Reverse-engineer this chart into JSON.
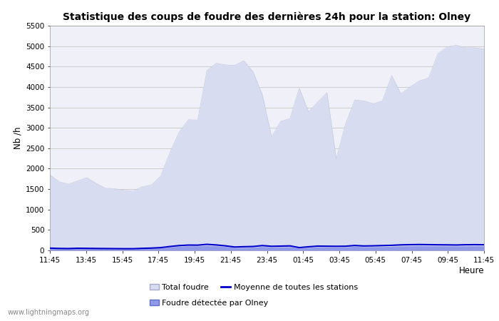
{
  "title": "Statistique des coups de foudre des dernières 24h pour la station: Olney",
  "xlabel": "Heure",
  "ylabel": "Nb /h",
  "ylim": [
    0,
    5500
  ],
  "yticks": [
    0,
    500,
    1000,
    1500,
    2000,
    2500,
    3000,
    3500,
    4000,
    4500,
    5000,
    5500
  ],
  "x_labels": [
    "11:45",
    "13:45",
    "15:45",
    "17:45",
    "19:45",
    "21:45",
    "23:45",
    "01:45",
    "03:45",
    "05:45",
    "07:45",
    "09:45",
    "11:45"
  ],
  "watermark": "www.lightningmaps.org",
  "bg_color": "#ffffff",
  "plot_bg_color": "#f0f0f8",
  "grid_color": "#cccccc",
  "total_foudre_color": "#d8dcf0",
  "total_foudre_edge": "#c8cce0",
  "olney_color": "#9098e8",
  "olney_edge": "#7080d8",
  "moyenne_color": "#0000cc",
  "total_foudre_values": [
    1850,
    1680,
    1620,
    1700,
    1780,
    1640,
    1520,
    1510,
    1470,
    1450,
    1560,
    1600,
    1820,
    2400,
    2900,
    3200,
    3190,
    4400,
    4580,
    4540,
    4530,
    4640,
    4370,
    3810,
    2780,
    3160,
    3230,
    3970,
    3390,
    3630,
    3860,
    2240,
    3090,
    3680,
    3660,
    3590,
    3660,
    4280,
    3830,
    4000,
    4150,
    4220,
    4810,
    4980,
    5020,
    4960,
    4960,
    4930
  ],
  "olney_values": [
    55,
    45,
    42,
    48,
    46,
    43,
    42,
    40,
    38,
    38,
    45,
    50,
    60,
    80,
    100,
    110,
    108,
    120,
    110,
    95,
    65,
    70,
    75,
    95,
    80,
    85,
    88,
    55,
    70,
    85,
    82,
    80,
    82,
    100,
    88,
    90,
    92,
    98,
    108,
    112,
    115,
    112,
    110,
    108,
    106,
    110,
    112,
    110
  ],
  "moyenne_values": [
    55,
    48,
    45,
    52,
    50,
    47,
    45,
    43,
    41,
    41,
    50,
    56,
    68,
    95,
    118,
    130,
    128,
    148,
    133,
    112,
    82,
    90,
    95,
    118,
    100,
    105,
    110,
    68,
    88,
    105,
    102,
    100,
    102,
    120,
    108,
    112,
    118,
    124,
    135,
    140,
    143,
    140,
    137,
    135,
    132,
    138,
    140,
    138
  ],
  "n_points": 48,
  "legend_total_label": "Total foudre",
  "legend_moyenne_label": "Moyenne de toutes les stations",
  "legend_olney_label": "Foudre détectée par Olney"
}
